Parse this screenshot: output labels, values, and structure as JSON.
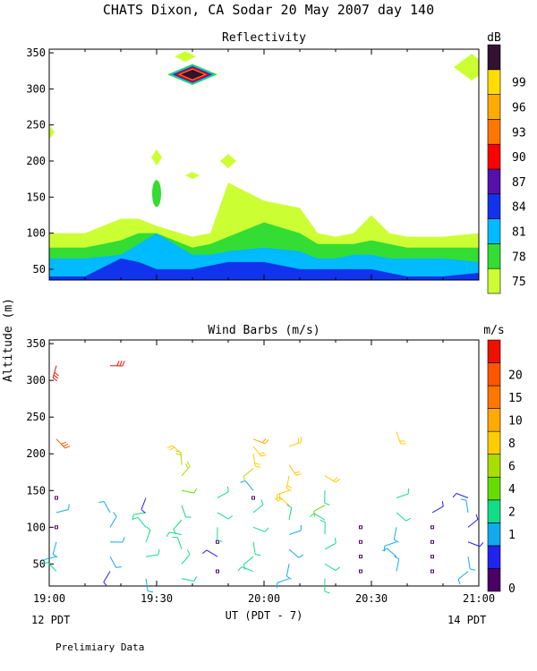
{
  "header": {
    "title": "CHATS Dixon, CA  Sodar  20 May 2007  day 140",
    "y_axis_label": "Altitude (m)",
    "x_axis_label": "UT  (PDT - 7)",
    "left_time_note": "12 PDT",
    "right_time_note": "14 PDT",
    "footer_note": "Prelimiary Data"
  },
  "colors": {
    "reflectivity": [
      "#ccff33",
      "#33dd33",
      "#00bbff",
      "#1133ee",
      "#5511aa",
      "#ff0000",
      "#ff7700",
      "#ffaa00",
      "#ffdd00",
      "#331133"
    ],
    "wind": [
      "#4a0066",
      "#2222ee",
      "#11aaee",
      "#11dd88",
      "#66dd00",
      "#aadd00",
      "#ffcc00",
      "#ffaa00",
      "#ff7700",
      "#ff5500",
      "#ee1100"
    ]
  },
  "chart_data": [
    {
      "type": "heatmap",
      "title": "Reflectivity",
      "units": "dB",
      "xlim": [
        "19:00",
        "21:00"
      ],
      "x_ticks": [
        "19:00",
        "19:30",
        "20:00",
        "20:30",
        "21:00"
      ],
      "ylim": [
        35,
        355
      ],
      "y_ticks": [
        50,
        100,
        150,
        200,
        250,
        300,
        350
      ],
      "colorbar": {
        "levels": [
          75,
          78,
          81,
          84,
          87,
          90,
          93,
          96,
          99
        ],
        "label": "dB"
      },
      "series": [
        {
          "name": "75",
          "x_minutes": [
            0,
            10,
            20,
            25,
            30,
            40,
            45,
            50,
            60,
            70,
            75,
            80,
            85,
            90,
            95,
            100,
            110,
            120
          ],
          "top_altitude": [
            100,
            100,
            120,
            120,
            110,
            95,
            100,
            170,
            145,
            135,
            100,
            95,
            100,
            125,
            100,
            95,
            95,
            100
          ]
        },
        {
          "name": "78",
          "x_minutes": [
            0,
            10,
            20,
            25,
            30,
            40,
            45,
            50,
            60,
            70,
            75,
            80,
            85,
            90,
            95,
            100,
            110,
            120
          ],
          "top_altitude": [
            80,
            80,
            90,
            100,
            100,
            80,
            85,
            95,
            115,
            100,
            85,
            85,
            85,
            90,
            85,
            80,
            80,
            80
          ]
        },
        {
          "name": "81",
          "x_minutes": [
            0,
            10,
            20,
            25,
            30,
            40,
            45,
            50,
            60,
            70,
            75,
            80,
            85,
            90,
            95,
            100,
            110,
            120
          ],
          "top_altitude": [
            65,
            65,
            70,
            85,
            100,
            70,
            70,
            75,
            80,
            75,
            65,
            65,
            70,
            70,
            65,
            65,
            65,
            60
          ]
        },
        {
          "name": "84",
          "x_minutes": [
            0,
            10,
            20,
            25,
            30,
            40,
            45,
            50,
            60,
            70,
            75,
            80,
            85,
            90,
            95,
            100,
            110,
            120
          ],
          "top_altitude": [
            40,
            40,
            65,
            60,
            50,
            50,
            55,
            60,
            60,
            50,
            50,
            50,
            50,
            50,
            45,
            40,
            40,
            45
          ]
        }
      ],
      "echo_patches": [
        {
          "center_minutes": 40,
          "center_altitude": 320,
          "level": 99
        },
        {
          "center_minutes": 30,
          "center_altitude": 155,
          "level": 78
        }
      ]
    },
    {
      "type": "scatter",
      "title": "Wind Barbs (m/s)",
      "units": "m/s",
      "xlim": [
        "19:00",
        "21:00"
      ],
      "x_ticks": [
        "19:00",
        "19:30",
        "20:00",
        "20:30",
        "21:00"
      ],
      "ylim": [
        20,
        355
      ],
      "y_ticks": [
        50,
        100,
        150,
        200,
        250,
        300,
        350
      ],
      "colorbar": {
        "levels": [
          0,
          1,
          2,
          4,
          6,
          8,
          10,
          15,
          20
        ],
        "label": "m/s"
      },
      "profiles": [
        {
          "time_minutes": 2,
          "barbs": [
            {
              "alt": 40,
              "spd": 3
            },
            {
              "alt": 60,
              "spd": 2
            },
            {
              "alt": 80,
              "spd": 1.5
            },
            {
              "alt": 100,
              "spd": 0
            },
            {
              "alt": 120,
              "spd": 2.5
            },
            {
              "alt": 140,
              "spd": 0
            },
            {
              "alt": 220,
              "spd": 17
            },
            {
              "alt": 320,
              "spd": 20
            }
          ]
        },
        {
          "time_minutes": 17,
          "barbs": [
            {
              "alt": 40,
              "spd": 1
            },
            {
              "alt": 60,
              "spd": 2.5
            },
            {
              "alt": 80,
              "spd": 2.5
            },
            {
              "alt": 100,
              "spd": 2.5
            },
            {
              "alt": 120,
              "spd": 1.5
            },
            {
              "alt": 320,
              "spd": 19
            }
          ]
        },
        {
          "time_minutes": 27,
          "barbs": [
            {
              "alt": 30,
              "spd": 2.5
            },
            {
              "alt": 60,
              "spd": 3
            },
            {
              "alt": 80,
              "spd": 3.5
            },
            {
              "alt": 100,
              "spd": 4
            },
            {
              "alt": 120,
              "spd": 4
            },
            {
              "alt": 140,
              "spd": 1
            }
          ]
        },
        {
          "time_minutes": 37,
          "barbs": [
            {
              "alt": 30,
              "spd": 3
            },
            {
              "alt": 50,
              "spd": 3
            },
            {
              "alt": 70,
              "spd": 3
            },
            {
              "alt": 90,
              "spd": 4
            },
            {
              "alt": 110,
              "spd": 4
            },
            {
              "alt": 130,
              "spd": 3.5
            },
            {
              "alt": 150,
              "spd": 6
            },
            {
              "alt": 170,
              "spd": 8
            },
            {
              "alt": 185,
              "spd": 8.5
            },
            {
              "alt": 200,
              "spd": 9.5
            }
          ]
        },
        {
          "time_minutes": 47,
          "barbs": [
            {
              "alt": 40,
              "spd": 0
            },
            {
              "alt": 60,
              "spd": 1
            },
            {
              "alt": 80,
              "spd": 0
            },
            {
              "alt": 100,
              "spd": 4
            },
            {
              "alt": 120,
              "spd": 3
            },
            {
              "alt": 140,
              "spd": 4
            }
          ]
        },
        {
          "time_minutes": 57,
          "barbs": [
            {
              "alt": 40,
              "spd": 3.5
            },
            {
              "alt": 60,
              "spd": 4
            },
            {
              "alt": 80,
              "spd": 4
            },
            {
              "alt": 100,
              "spd": 4
            },
            {
              "alt": 120,
              "spd": 4
            },
            {
              "alt": 140,
              "spd": 0
            },
            {
              "alt": 150,
              "spd": 1.5
            },
            {
              "alt": 180,
              "spd": 7
            },
            {
              "alt": 200,
              "spd": 9
            },
            {
              "alt": 210,
              "spd": 9.5
            },
            {
              "alt": 220,
              "spd": 10
            }
          ]
        },
        {
          "time_minutes": 67,
          "barbs": [
            {
              "alt": 30,
              "spd": 2.5
            },
            {
              "alt": 50,
              "spd": 2.5
            },
            {
              "alt": 70,
              "spd": 2.5
            },
            {
              "alt": 90,
              "spd": 2.5
            },
            {
              "alt": 110,
              "spd": 4
            },
            {
              "alt": 130,
              "spd": 9
            },
            {
              "alt": 150,
              "spd": 9.5
            },
            {
              "alt": 170,
              "spd": 9.5
            },
            {
              "alt": 185,
              "spd": 9.5
            },
            {
              "alt": 210,
              "spd": 9.5
            }
          ]
        },
        {
          "time_minutes": 77,
          "barbs": [
            {
              "alt": 30,
              "spd": 3
            },
            {
              "alt": 50,
              "spd": 3.5
            },
            {
              "alt": 70,
              "spd": 4
            },
            {
              "alt": 90,
              "spd": 4
            },
            {
              "alt": 110,
              "spd": 4
            },
            {
              "alt": 130,
              "spd": 6
            },
            {
              "alt": 150,
              "spd": 4
            },
            {
              "alt": 170,
              "spd": 9
            }
          ]
        },
        {
          "time_minutes": 87,
          "barbs": [
            {
              "alt": 40,
              "spd": 0
            },
            {
              "alt": 60,
              "spd": 0
            },
            {
              "alt": 80,
              "spd": 0
            },
            {
              "alt": 100,
              "spd": 0
            }
          ]
        },
        {
          "time_minutes": 97,
          "barbs": [
            {
              "alt": 40,
              "spd": 2.5
            },
            {
              "alt": 60,
              "spd": 2.5
            },
            {
              "alt": 80,
              "spd": 2
            },
            {
              "alt": 100,
              "spd": 2.5
            },
            {
              "alt": 120,
              "spd": 3
            },
            {
              "alt": 140,
              "spd": 4
            },
            {
              "alt": 230,
              "spd": 9
            }
          ]
        },
        {
          "time_minutes": 107,
          "barbs": [
            {
              "alt": 40,
              "spd": 0
            },
            {
              "alt": 60,
              "spd": 0
            },
            {
              "alt": 80,
              "spd": 0
            },
            {
              "alt": 100,
              "spd": 0
            },
            {
              "alt": 120,
              "spd": 1
            }
          ]
        },
        {
          "time_minutes": 117,
          "barbs": [
            {
              "alt": 40,
              "spd": 2
            },
            {
              "alt": 60,
              "spd": 2
            },
            {
              "alt": 80,
              "spd": 1
            },
            {
              "alt": 100,
              "spd": 1
            },
            {
              "alt": 120,
              "spd": 2.5
            },
            {
              "alt": 140,
              "spd": 1
            }
          ]
        }
      ]
    }
  ]
}
